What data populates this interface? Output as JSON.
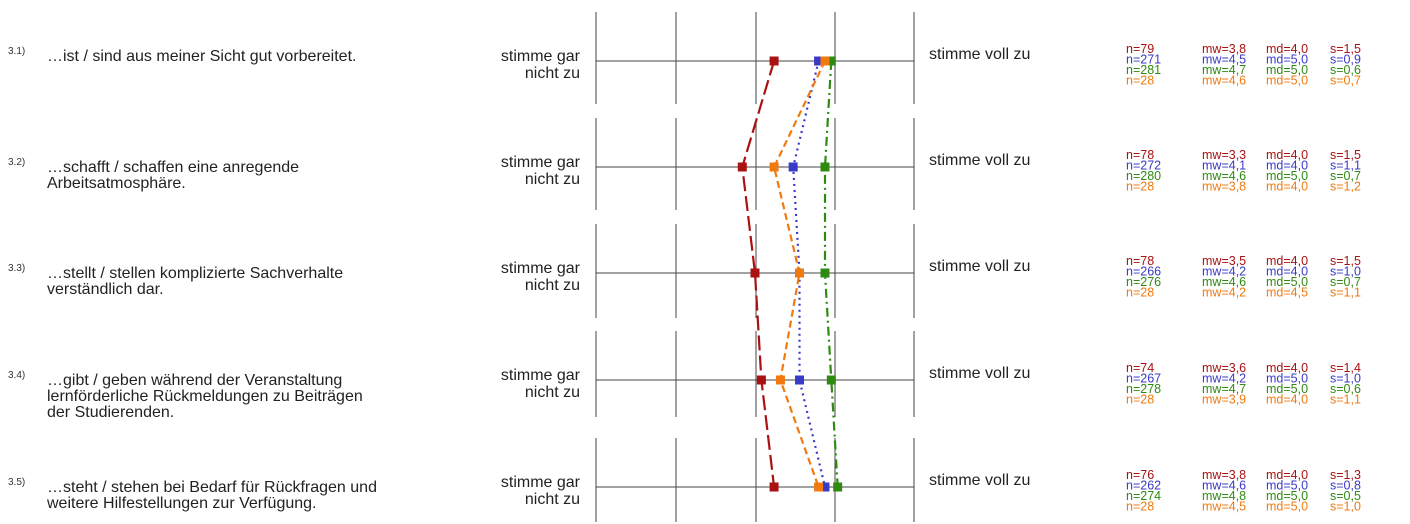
{
  "chart_data": {
    "type": "line",
    "scale_left_label": "stimme gar nicht zu",
    "scale_right_label": "stimme voll zu",
    "xlim": [
      1,
      6
    ],
    "series": [
      {
        "color": "#aa1111",
        "dash": "long-dash"
      },
      {
        "color": "#3a3ac8",
        "dash": "dotted"
      },
      {
        "color": "#2f8a12",
        "dash": "dash-dot"
      },
      {
        "color": "#f07a10",
        "dash": "dashed"
      }
    ],
    "items": [
      {
        "num": "3.1)",
        "text": [
          "…ist / sind aus meiner Sicht gut vorbereitet."
        ],
        "values": [
          3.8,
          4.5,
          4.7,
          4.6
        ],
        "stats": [
          [
            "n=79",
            "mw=3,8",
            "md=4,0",
            "s=1,5"
          ],
          [
            "n=271",
            "mw=4,5",
            "md=5,0",
            "s=0,9"
          ],
          [
            "n=281",
            "mw=4,7",
            "md=5,0",
            "s=0,6"
          ],
          [
            "n=28",
            "mw=4,6",
            "md=5,0",
            "s=0,7"
          ]
        ]
      },
      {
        "num": "3.2)",
        "text": [
          "…schafft / schaffen eine anregende",
          "Arbeitsatmosphäre."
        ],
        "values": [
          3.3,
          4.1,
          4.6,
          3.8
        ],
        "stats": [
          [
            "n=78",
            "mw=3,3",
            "md=4,0",
            "s=1,5"
          ],
          [
            "n=272",
            "mw=4,1",
            "md=4,0",
            "s=1,1"
          ],
          [
            "n=280",
            "mw=4,6",
            "md=5,0",
            "s=0,7"
          ],
          [
            "n=28",
            "mw=3,8",
            "md=4,0",
            "s=1,2"
          ]
        ]
      },
      {
        "num": "3.3)",
        "text": [
          "…stellt / stellen komplizierte Sachverhalte",
          "verständlich dar."
        ],
        "values": [
          3.5,
          4.2,
          4.6,
          4.2
        ],
        "stats": [
          [
            "n=78",
            "mw=3,5",
            "md=4,0",
            "s=1,5"
          ],
          [
            "n=266",
            "mw=4,2",
            "md=4,0",
            "s=1,0"
          ],
          [
            "n=276",
            "mw=4,6",
            "md=5,0",
            "s=0,7"
          ],
          [
            "n=28",
            "mw=4,2",
            "md=4,5",
            "s=1,1"
          ]
        ]
      },
      {
        "num": "3.4)",
        "text": [
          "…gibt / geben während der Veranstaltung",
          "lernförderliche Rückmeldungen zu Beiträgen",
          "der Studierenden."
        ],
        "values": [
          3.6,
          4.2,
          4.7,
          3.9
        ],
        "stats": [
          [
            "n=74",
            "mw=3,6",
            "md=4,0",
            "s=1,4"
          ],
          [
            "n=267",
            "mw=4,2",
            "md=5,0",
            "s=1,0"
          ],
          [
            "n=278",
            "mw=4,7",
            "md=5,0",
            "s=0,6"
          ],
          [
            "n=28",
            "mw=3,9",
            "md=4,0",
            "s=1,1"
          ]
        ]
      },
      {
        "num": "3.5)",
        "text": [
          "…steht / stehen bei Bedarf für Rückfragen und",
          "weitere Hilfestellungen zur Verfügung."
        ],
        "values": [
          3.8,
          4.6,
          4.8,
          4.5
        ],
        "stats": [
          [
            "n=76",
            "mw=3,8",
            "md=4,0",
            "s=1,3"
          ],
          [
            "n=262",
            "mw=4,6",
            "md=5,0",
            "s=0,8"
          ],
          [
            "n=274",
            "mw=4,8",
            "md=5,0",
            "s=0,5"
          ],
          [
            "n=28",
            "mw=4,5",
            "md=5,0",
            "s=1,0"
          ]
        ]
      }
    ]
  }
}
